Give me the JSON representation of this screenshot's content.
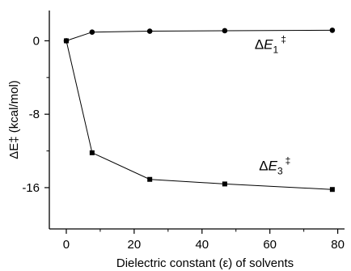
{
  "chart_data": {
    "type": "line",
    "xlabel": "Dielectric constant (ε) of solvents",
    "ylabel": "ΔE‡ (kcal/mol)",
    "xlim": [
      -5,
      82
    ],
    "ylim": [
      -20.5,
      3.3
    ],
    "xticks": [
      0,
      20,
      40,
      60,
      80
    ],
    "yticks": [
      0,
      -8,
      -16
    ],
    "grid": false,
    "series": [
      {
        "name": "ΔE1‡",
        "marker": "circle",
        "x": [
          0,
          7.6,
          24.6,
          46.7,
          78.4
        ],
        "y": [
          0.0,
          0.95,
          1.05,
          1.1,
          1.15
        ]
      },
      {
        "name": "ΔE3‡",
        "marker": "square",
        "x": [
          0,
          7.6,
          24.6,
          46.7,
          78.4
        ],
        "y": [
          0.0,
          -12.2,
          -15.1,
          -15.6,
          -16.2
        ]
      }
    ]
  }
}
